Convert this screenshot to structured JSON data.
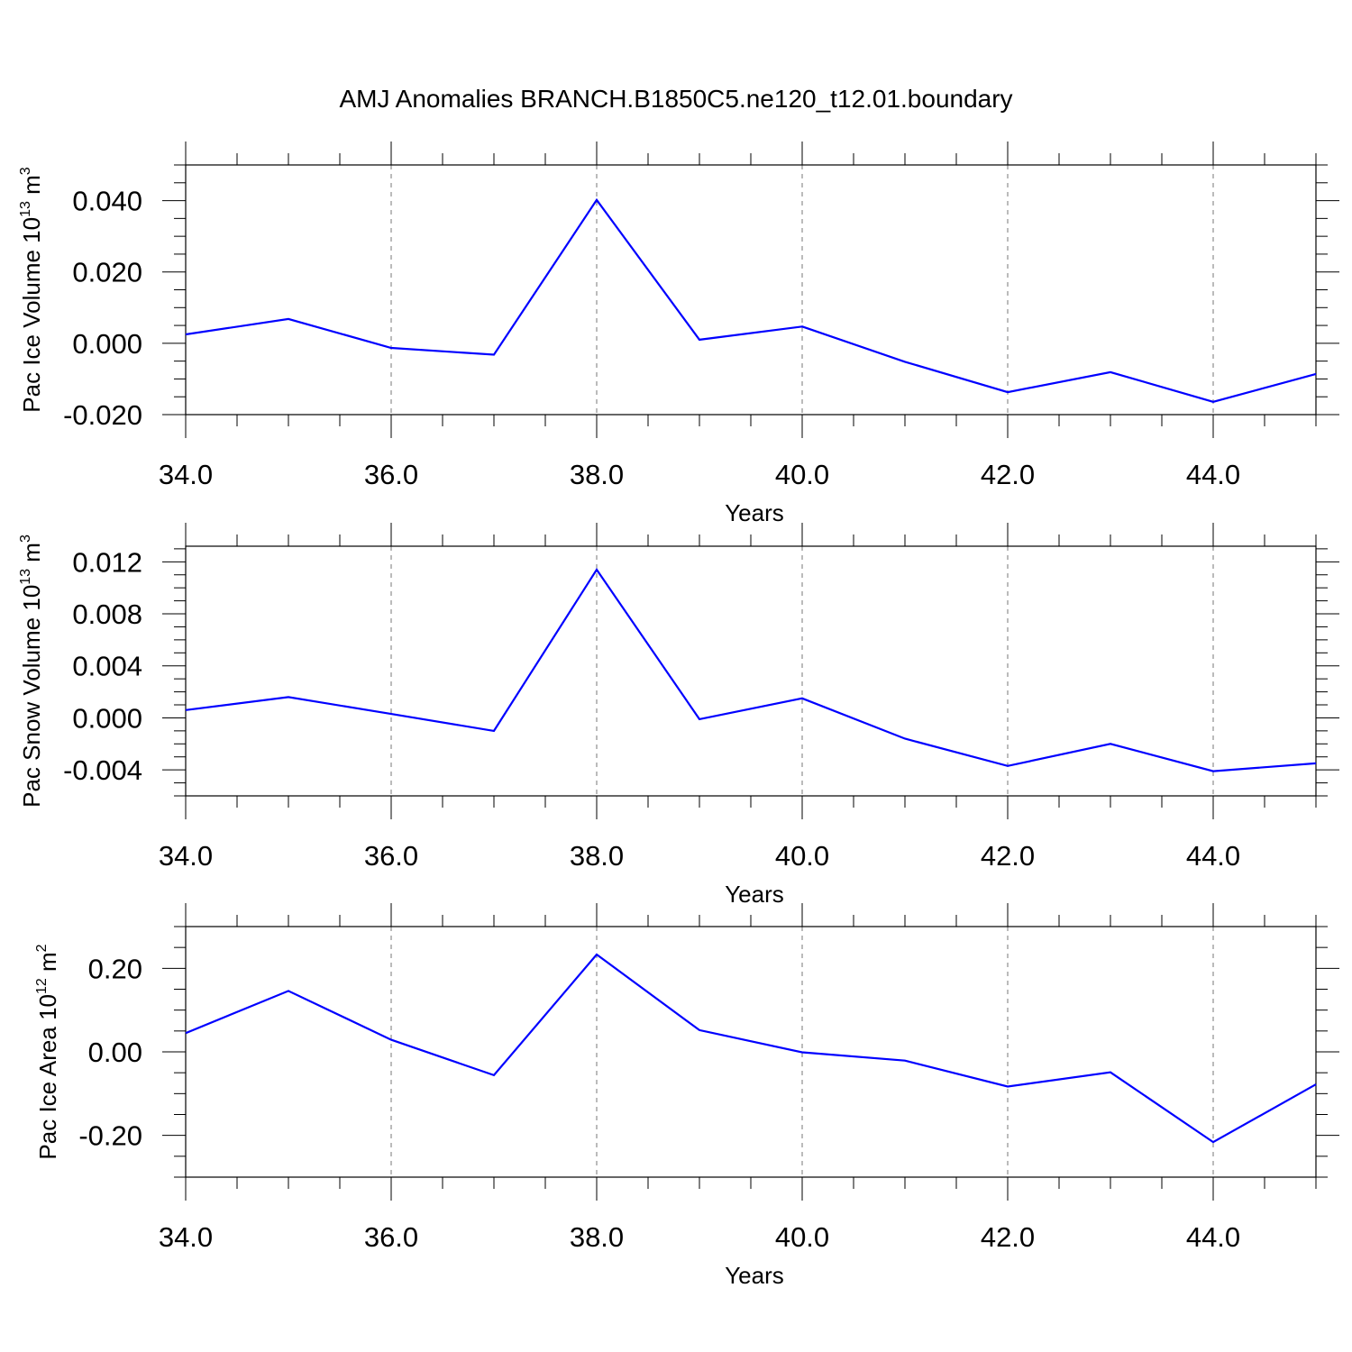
{
  "title": "AMJ Anomalies BRANCH.B1850C5.ne120_t12.01.boundary",
  "line_color": "#0000ff",
  "chart_data": [
    {
      "type": "line",
      "xlabel": "Years",
      "ylabel": {
        "text": "Pac Ice Volume 10",
        "exp": "13",
        "unit": " m",
        "unit_exp": "3"
      },
      "xlim": [
        34,
        45
      ],
      "ylim": [
        -0.02,
        0.05
      ],
      "xticks": [
        34,
        36,
        38,
        40,
        42,
        44
      ],
      "xtick_labels": [
        "34.0",
        "36.0",
        "38.0",
        "40.0",
        "42.0",
        "44.0"
      ],
      "yticks": [
        -0.02,
        0.0,
        0.02,
        0.04
      ],
      "ytick_labels": [
        "-0.020",
        "0.000",
        "0.020",
        "0.040"
      ],
      "yminor_step": 0.005,
      "x": [
        34,
        35,
        36,
        37,
        38,
        39,
        40,
        41,
        42,
        43,
        44,
        45
      ],
      "values": [
        0.0025,
        0.0068,
        -0.0013,
        -0.0032,
        0.0402,
        0.001,
        0.0047,
        -0.0052,
        -0.0137,
        -0.0081,
        -0.0164,
        -0.0086
      ],
      "grid": "dashed vertical at major x ticks"
    },
    {
      "type": "line",
      "xlabel": "Years",
      "ylabel": {
        "text": "Pac Snow Volume 10",
        "exp": "13",
        "unit": " m",
        "unit_exp": "3"
      },
      "xlim": [
        34,
        45
      ],
      "ylim": [
        -0.006,
        0.0132
      ],
      "xticks": [
        34,
        36,
        38,
        40,
        42,
        44
      ],
      "xtick_labels": [
        "34.0",
        "36.0",
        "38.0",
        "40.0",
        "42.0",
        "44.0"
      ],
      "yticks": [
        -0.004,
        0.0,
        0.004,
        0.008,
        0.012
      ],
      "ytick_labels": [
        "-0.004",
        "0.000",
        "0.004",
        "0.008",
        "0.012"
      ],
      "yminor_step": 0.001,
      "x": [
        34,
        35,
        36,
        37,
        38,
        39,
        40,
        41,
        42,
        43,
        44,
        45
      ],
      "values": [
        0.0006,
        0.0016,
        0.0003,
        -0.001,
        0.0114,
        -0.0001,
        0.0015,
        -0.0016,
        -0.0037,
        -0.002,
        -0.0041,
        -0.0035
      ],
      "grid": "dashed vertical at major x ticks"
    },
    {
      "type": "line",
      "xlabel": "Years",
      "ylabel": {
        "text": "Pac Ice Area 10",
        "exp": "12",
        "unit": " m",
        "unit_exp": "2"
      },
      "xlim": [
        34,
        45
      ],
      "ylim": [
        -0.3,
        0.3
      ],
      "xticks": [
        34,
        36,
        38,
        40,
        42,
        44
      ],
      "xtick_labels": [
        "34.0",
        "36.0",
        "38.0",
        "40.0",
        "42.0",
        "44.0"
      ],
      "yticks": [
        -0.2,
        0.0,
        0.2
      ],
      "ytick_labels": [
        "-0.20",
        "0.00",
        "0.20"
      ],
      "yminor_step": 0.05,
      "x": [
        34,
        35,
        36,
        37,
        38,
        39,
        40,
        41,
        42,
        43,
        44,
        45
      ],
      "values": [
        0.045,
        0.146,
        0.029,
        -0.056,
        0.233,
        0.052,
        -0.001,
        -0.021,
        -0.083,
        -0.049,
        -0.216,
        -0.078
      ],
      "grid": "dashed vertical at major x ticks"
    }
  ]
}
